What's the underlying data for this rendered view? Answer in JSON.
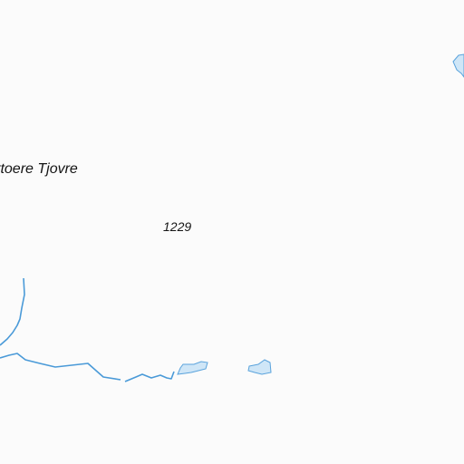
{
  "map": {
    "place_name": "ttoere Tjovre",
    "elevation": "1229",
    "colors": {
      "background": "#fbfbfb",
      "water_line": "#4a9ad8",
      "lake_fill": "#cfe6f7",
      "lake_outline": "#5aa3dc",
      "label_text": "#141414"
    },
    "features": [
      {
        "kind": "stream"
      },
      {
        "kind": "stream"
      },
      {
        "kind": "lake"
      },
      {
        "kind": "lake"
      },
      {
        "kind": "lake"
      }
    ]
  }
}
